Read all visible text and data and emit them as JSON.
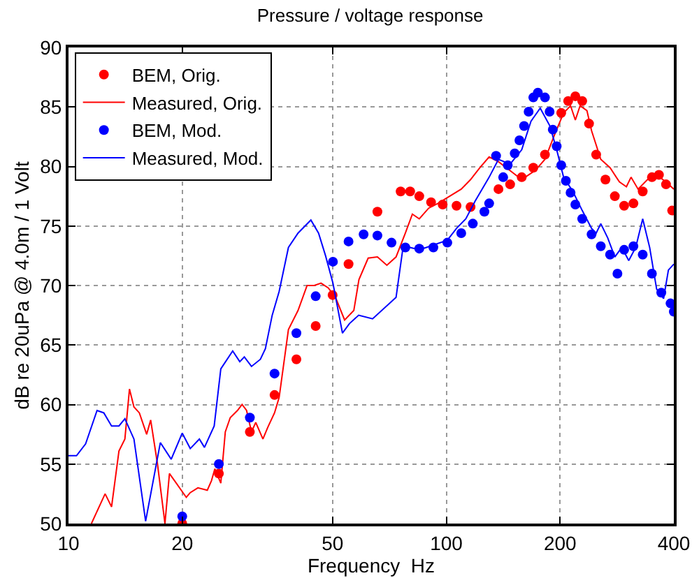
{
  "chart_data": {
    "type": "line",
    "title": "Pressure / voltage response",
    "xlabel": "Frequency  Hz",
    "ylabel": "dB re 20uPa @ 4.0m / 1 Volt",
    "log": "x",
    "xlim": [
      10,
      400
    ],
    "xticks": [
      10,
      20,
      50,
      100,
      200,
      400
    ],
    "ylim": [
      50,
      90
    ],
    "yticks": [
      50,
      55,
      60,
      65,
      70,
      75,
      80,
      85,
      90
    ],
    "grid": true,
    "legend": "top left",
    "line_style": "solid",
    "series": [
      {
        "name": "BEM, Orig.",
        "type": "scatter",
        "marker": "circle",
        "color": "#ff0000",
        "x": [
          20,
          25,
          30.2,
          35.1,
          40.1,
          45.1,
          50,
          55.1,
          60.4,
          65.7,
          75.7,
          80.2,
          84.8,
          91.1,
          97.8,
          106.4,
          115.9,
          129.8,
          137.4,
          147.5,
          158.3,
          169.9,
          182.4,
          193,
          201.4,
          210.1,
          219.5,
          228.9,
          238.6,
          249.2,
          263.7,
          279.2,
          295.5,
          312.7,
          330.9,
          350,
          365.3,
          381.4,
          395.9
        ],
        "values": [
          50.0,
          54.2,
          57.7,
          60.8,
          63.8,
          66.6,
          69.2,
          71.8,
          null,
          76.2,
          77.9,
          77.9,
          77.5,
          77.0,
          76.8,
          76.7,
          76.6,
          null,
          78.1,
          78.5,
          79.1,
          79.9,
          81.0,
          null,
          84.5,
          85.5,
          85.9,
          85.5,
          83.6,
          81.0,
          78.9,
          77.5,
          76.7,
          76.9,
          77.9,
          79.1,
          79.3,
          78.5,
          76.3
        ]
      },
      {
        "name": "Measured, Orig.",
        "type": "line",
        "marker": "none",
        "color": "#ff0000",
        "x": [
          11.5,
          12.5,
          13,
          13.6,
          14.1,
          14.5,
          14.9,
          15.4,
          16.1,
          16.5,
          17.2,
          18,
          18.5,
          20.5,
          21,
          22,
          23.3,
          23.9,
          24.4,
          25.3,
          26,
          26.8,
          28,
          28.8,
          29.6,
          30.5,
          31.3,
          32.7,
          33.7,
          35.1,
          36.1,
          38.2,
          40.5,
          42.8,
          44.7,
          46.6,
          48.7,
          50.9,
          53.8,
          56.9,
          58.7,
          62.1,
          65.7,
          69.6,
          73.6,
          77.9,
          81.3,
          84.8,
          89.8,
          95,
          102,
          109.5,
          115.9,
          122.7,
          129.8,
          137.4,
          149.6,
          158.3,
          172.3,
          182.4,
          193,
          204.3,
          213.2,
          219.5,
          225.9,
          235.5,
          242.3,
          256.3,
          271.2,
          287.1,
          299.6,
          308.2,
          321.7,
          340.6,
          360.2,
          381.4,
          400
        ],
        "values": [
          50.0,
          52.5,
          51.4,
          56.1,
          57.1,
          61.3,
          59.8,
          59.3,
          57.5,
          58.7,
          55.0,
          50.0,
          54.2,
          52.2,
          52.6,
          53.0,
          52.8,
          53.6,
          54.6,
          53.4,
          57.7,
          58.9,
          59.5,
          60.0,
          59.5,
          57.7,
          58.5,
          57.1,
          58.1,
          59.3,
          60.6,
          66.3,
          67.9,
          70.0,
          70.0,
          70.2,
          69.8,
          69.0,
          67.1,
          67.9,
          70.5,
          72.3,
          72.4,
          71.7,
          72.4,
          74.4,
          76.0,
          75.6,
          76.5,
          76.9,
          77.5,
          78.1,
          78.9,
          79.9,
          80.8,
          80.4,
          79.5,
          78.9,
          79.7,
          80.6,
          82.6,
          84.5,
          85.1,
          83.9,
          85.1,
          84.7,
          83.0,
          80.6,
          79.9,
          78.7,
          78.3,
          79.1,
          78.1,
          78.9,
          79.3,
          78.7,
          78.1
        ]
      },
      {
        "name": "BEM, Mod.",
        "type": "scatter",
        "marker": "circle",
        "color": "#0000ff",
        "x": [
          20,
          25,
          30.2,
          35.1,
          40.1,
          45.1,
          50.1,
          55.1,
          60.4,
          65.7,
          71.6,
          77.9,
          84.8,
          92.4,
          100.6,
          109.5,
          117.5,
          126.1,
          129.8,
          135.4,
          141.4,
          145.4,
          151.7,
          156.1,
          160.6,
          165.1,
          169.9,
          174.7,
          182.4,
          187.6,
          191.3,
          195.9,
          201.4,
          207.2,
          213.2,
          219.5,
          228.9,
          242.3,
          256.3,
          271.2,
          283.7,
          295.5,
          312.7,
          330.9,
          350,
          370.6,
          392,
          400
        ],
        "values": [
          50.6,
          55.0,
          58.9,
          62.6,
          66.0,
          69.1,
          72.0,
          73.7,
          74.3,
          74.2,
          73.6,
          73.2,
          73.1,
          73.2,
          73.6,
          74.4,
          75.2,
          76.2,
          76.9,
          80.9,
          79.1,
          80.1,
          81.1,
          82.2,
          83.4,
          84.6,
          85.8,
          86.2,
          85.8,
          84.6,
          83.1,
          81.7,
          80.1,
          78.8,
          77.8,
          76.8,
          75.6,
          74.3,
          73.3,
          72.6,
          71.0,
          73.0,
          73.3,
          72.6,
          71.0,
          69.4,
          68.5,
          67.8
        ]
      },
      {
        "name": "Measured, Mod.",
        "type": "line",
        "marker": "none",
        "color": "#0000ff",
        "x": [
          10,
          10.5,
          11.1,
          11.9,
          12.4,
          13,
          13.6,
          14.1,
          14.9,
          16,
          17.5,
          18.7,
          20,
          21,
          22.2,
          22.9,
          24.3,
          25.3,
          27.2,
          28.4,
          29.2,
          30.5,
          32.2,
          33.2,
          34.6,
          36.1,
          38.2,
          40.5,
          43.8,
          45.9,
          47.9,
          50.1,
          53.1,
          55.4,
          58.6,
          63.8,
          73.6,
          76.8,
          80.2,
          84.8,
          92.4,
          100.6,
          106.4,
          112.6,
          119.2,
          129.8,
          137.4,
          147.5,
          158.3,
          167.5,
          177.2,
          188,
          195.9,
          204.3,
          216.2,
          228.9,
          242.3,
          249.2,
          256.3,
          267.4,
          279.2,
          291.3,
          303.9,
          317.1,
          330.9,
          345.2,
          360.2,
          375.8,
          387,
          400
        ],
        "values": [
          55.7,
          55.7,
          56.7,
          59.5,
          59.3,
          58.2,
          58.2,
          58.8,
          57.1,
          50.2,
          56.8,
          55.4,
          57.6,
          56.3,
          57.1,
          56.4,
          58.2,
          63.0,
          64.5,
          63.6,
          64.0,
          63.2,
          63.8,
          64.7,
          67.5,
          69.5,
          73.2,
          74.4,
          75.5,
          74.4,
          72.5,
          70.2,
          66.0,
          66.8,
          67.5,
          67.2,
          69.0,
          73.2,
          73.2,
          73.0,
          73.4,
          73.8,
          74.8,
          75.6,
          77.1,
          79.1,
          80.6,
          80.2,
          81.4,
          83.8,
          84.9,
          83.4,
          81.4,
          79.1,
          77.9,
          76.3,
          74.8,
          74.4,
          75.2,
          74.0,
          72.4,
          73.2,
          72.1,
          73.2,
          75.6,
          73.2,
          69.7,
          68.9,
          71.3,
          71.8
        ]
      }
    ]
  }
}
